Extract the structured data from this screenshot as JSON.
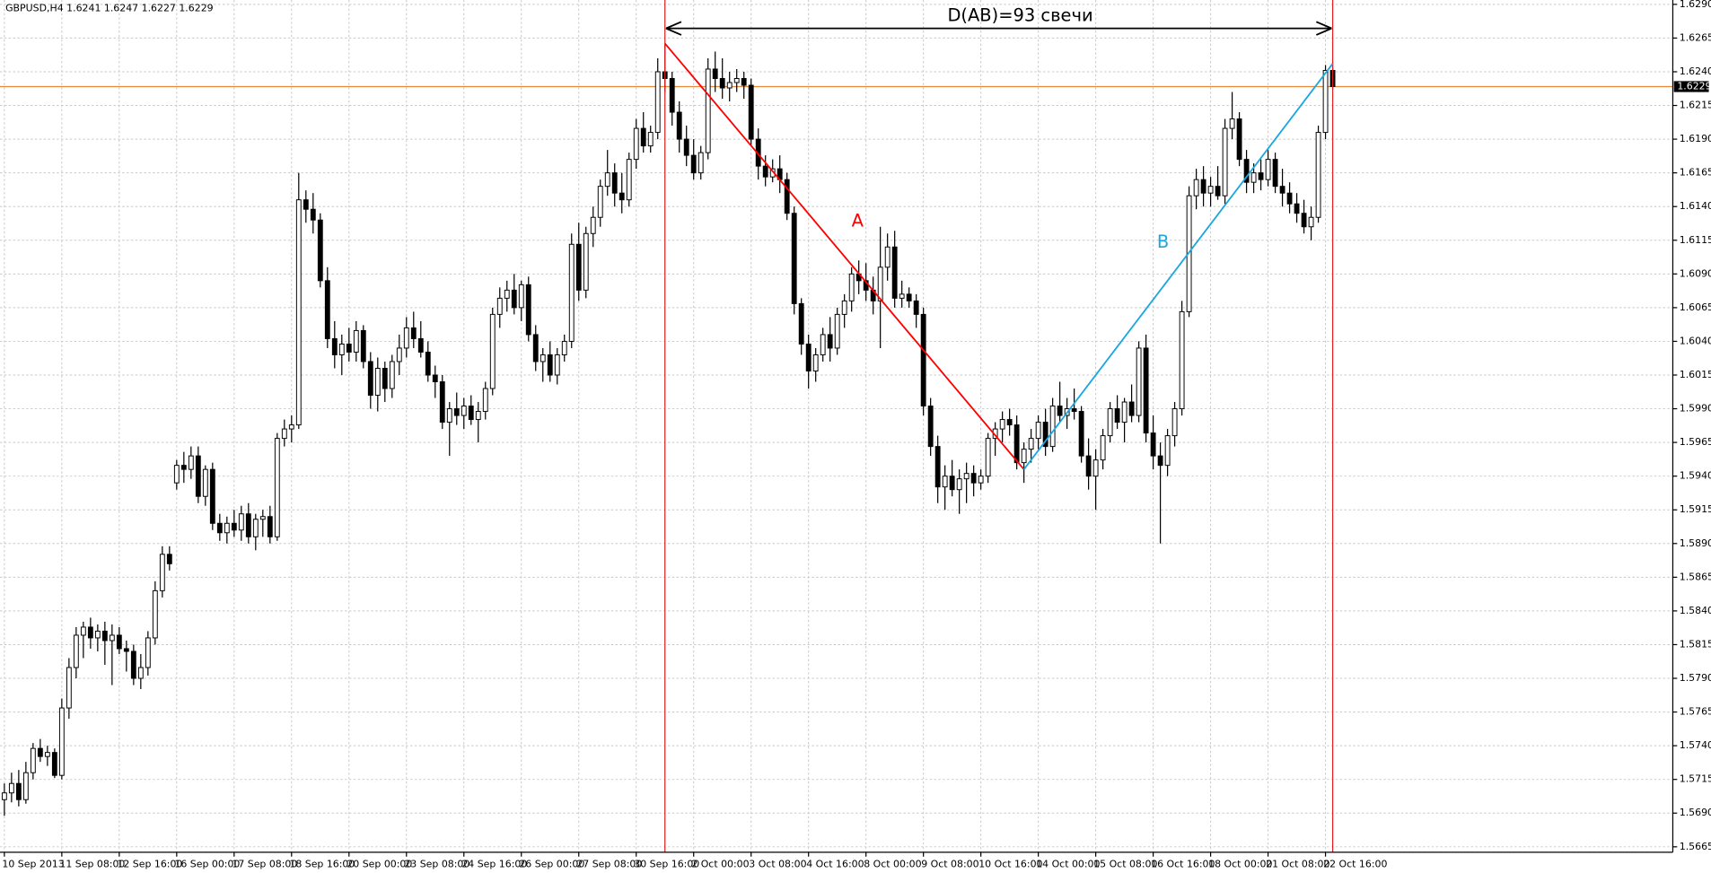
{
  "chart_data": {
    "type": "candlestick",
    "title": "GBPUSD,H4  1.6241 1.6247 1.6227 1.6229",
    "annotation": "D(AB)=93 свечи",
    "ylim": [
      1.5665,
      1.629
    ],
    "yticks": [
      1.5665,
      {
        "value": 1.569,
        "label": "1.5690"
      },
      1.5715,
      {
        "value": 1.574,
        "label": "1.5740"
      },
      1.5765,
      {
        "value": 1.579,
        "label": "1.5790"
      },
      1.5815,
      {
        "value": 1.584,
        "label": "1.5840"
      },
      1.5865,
      {
        "value": 1.589,
        "label": "1.5890"
      },
      1.5915,
      {
        "value": 1.594,
        "label": "1.5940"
      },
      1.5965,
      {
        "value": 1.599,
        "label": "1.5990"
      },
      1.6015,
      {
        "value": 1.604,
        "label": "1.6040"
      },
      1.6065,
      {
        "value": 1.609,
        "label": "1.6090"
      },
      1.6115,
      {
        "value": 1.614,
        "label": "1.6140"
      },
      1.6165,
      {
        "value": 1.619,
        "label": "1.6190"
      },
      1.6215,
      {
        "value": 1.624,
        "label": "1.6240"
      },
      1.6265,
      {
        "value": 1.629,
        "label": "1.6290"
      }
    ],
    "grid": true,
    "up_color": "#ffffff",
    "down_color": "#000000",
    "current_price": 1.6229,
    "current_price_color": "#e8893a",
    "vertical_lines": {
      "color": "#e02020",
      "at": [
        92,
        185
      ]
    },
    "trendlines": [
      {
        "name": "A",
        "color": "#ff0000",
        "points": [
          [
            92,
            1.6261
          ],
          [
            142,
            1.5945
          ]
        ]
      },
      {
        "name": "B",
        "color": "#1aa7e0",
        "points": [
          [
            142,
            1.5945
          ],
          [
            185,
            1.6246
          ]
        ]
      }
    ],
    "categories": [
      "10 Sep 2013",
      null,
      null,
      null,
      null,
      null,
      null,
      null,
      "11 Sep 08:00",
      null,
      null,
      null,
      null,
      null,
      null,
      null,
      "12 Sep 16:00",
      null,
      null,
      null,
      null,
      null,
      null,
      null,
      "16 Sep 00:00",
      null,
      null,
      null,
      null,
      null,
      null,
      null,
      "17 Sep 08:00",
      null,
      null,
      null,
      null,
      null,
      null,
      null,
      "18 Sep 16:00",
      null,
      null,
      null,
      null,
      null,
      null,
      null,
      "20 Sep 00:00",
      null,
      null,
      null,
      null,
      null,
      null,
      null,
      "23 Sep 08:00",
      null,
      null,
      null,
      null,
      null,
      null,
      null,
      "24 Sep 16:00",
      null,
      null,
      null,
      null,
      null,
      null,
      null,
      "26 Sep 00:00",
      null,
      null,
      null,
      null,
      null,
      null,
      null,
      "27 Sep 08:00",
      null,
      null,
      null,
      null,
      null,
      null,
      null,
      "30 Sep 16:00",
      null,
      null,
      null,
      null,
      null,
      null,
      null,
      "2 Oct 00:00",
      null,
      null,
      null,
      null,
      null,
      null,
      null,
      "3 Oct 08:00",
      null,
      null,
      null,
      null,
      null,
      null,
      null,
      "4 Oct 16:00",
      null,
      null,
      null,
      null,
      null,
      null,
      null,
      "8 Oct 00:00",
      null,
      null,
      null,
      null,
      null,
      null,
      null,
      "9 Oct 08:00",
      null,
      null,
      null,
      null,
      null,
      null,
      null,
      "10 Oct 16:00",
      null,
      null,
      null,
      null,
      null,
      null,
      null,
      "14 Oct 00:00",
      null,
      null,
      null,
      null,
      null,
      null,
      null,
      "15 Oct 08:00",
      null,
      null,
      null,
      null,
      null,
      null,
      null,
      "16 Oct 16:00",
      null,
      null,
      null,
      null,
      null,
      null,
      null,
      "18 Oct 00:00",
      null,
      null,
      null,
      null,
      null,
      null,
      null,
      "21 Oct 08:00",
      null,
      null,
      null,
      null,
      null,
      null,
      null,
      "22 Oct 16:00",
      null
    ],
    "ohlc": [
      [
        1.57,
        1.5712,
        1.5688,
        1.5705
      ],
      [
        1.5705,
        1.572,
        1.5698,
        1.5712
      ],
      [
        1.5712,
        1.5722,
        1.5695,
        1.57
      ],
      [
        1.57,
        1.5728,
        1.5697,
        1.572
      ],
      [
        1.572,
        1.5742,
        1.5715,
        1.5738
      ],
      [
        1.5738,
        1.5745,
        1.5728,
        1.5732
      ],
      [
        1.5732,
        1.574,
        1.5725,
        1.5735
      ],
      [
        1.5735,
        1.5738,
        1.5716,
        1.5718
      ],
      [
        1.5718,
        1.5775,
        1.5715,
        1.5768
      ],
      [
        1.5768,
        1.5805,
        1.576,
        1.5798
      ],
      [
        1.5798,
        1.5828,
        1.579,
        1.5822
      ],
      [
        1.5822,
        1.5832,
        1.5805,
        1.5828
      ],
      [
        1.5828,
        1.5835,
        1.5812,
        1.582
      ],
      [
        1.582,
        1.583,
        1.581,
        1.5825
      ],
      [
        1.5825,
        1.5832,
        1.58,
        1.5818
      ],
      [
        1.5818,
        1.583,
        1.5785,
        1.5822
      ],
      [
        1.5822,
        1.5828,
        1.5808,
        1.5812
      ],
      [
        1.5812,
        1.5818,
        1.5795,
        1.581
      ],
      [
        1.581,
        1.5815,
        1.5785,
        1.579
      ],
      [
        1.579,
        1.5808,
        1.5782,
        1.5798
      ],
      [
        1.5798,
        1.5825,
        1.5792,
        1.582
      ],
      [
        1.582,
        1.5862,
        1.5815,
        1.5855
      ],
      [
        1.5855,
        1.5888,
        1.585,
        1.5882
      ],
      [
        1.5882,
        1.5888,
        1.587,
        1.5875
      ],
      [
        1.5935,
        1.5952,
        1.593,
        1.5948
      ],
      [
        1.5948,
        1.5958,
        1.5935,
        1.5945
      ],
      [
        1.5945,
        1.5962,
        1.5938,
        1.5955
      ],
      [
        1.5955,
        1.5962,
        1.592,
        1.5925
      ],
      [
        1.5925,
        1.5948,
        1.5918,
        1.5945
      ],
      [
        1.5945,
        1.595,
        1.59,
        1.5905
      ],
      [
        1.5905,
        1.5912,
        1.5892,
        1.5898
      ],
      [
        1.5898,
        1.591,
        1.589,
        1.5905
      ],
      [
        1.5905,
        1.5915,
        1.5895,
        1.59
      ],
      [
        1.59,
        1.5918,
        1.5892,
        1.5912
      ],
      [
        1.5912,
        1.592,
        1.589,
        1.5895
      ],
      [
        1.5895,
        1.5912,
        1.5885,
        1.5908
      ],
      [
        1.5908,
        1.5915,
        1.5895,
        1.591
      ],
      [
        1.591,
        1.5918,
        1.589,
        1.5895
      ],
      [
        1.5895,
        1.5972,
        1.5892,
        1.5968
      ],
      [
        1.5968,
        1.5982,
        1.5962,
        1.5975
      ],
      [
        1.5975,
        1.5985,
        1.5965,
        1.5978
      ],
      [
        1.5978,
        1.6165,
        1.5975,
        1.6145
      ],
      [
        1.6145,
        1.6152,
        1.6128,
        1.6138
      ],
      [
        1.6138,
        1.615,
        1.612,
        1.613
      ],
      [
        1.613,
        1.6135,
        1.608,
        1.6085
      ],
      [
        1.6085,
        1.6095,
        1.6035,
        1.6042
      ],
      [
        1.6042,
        1.6055,
        1.602,
        1.603
      ],
      [
        1.603,
        1.6045,
        1.6015,
        1.6038
      ],
      [
        1.6038,
        1.605,
        1.6025,
        1.6032
      ],
      [
        1.6032,
        1.6055,
        1.6025,
        1.6048
      ],
      [
        1.6048,
        1.6052,
        1.602,
        1.6025
      ],
      [
        1.6025,
        1.6032,
        1.599,
        1.6
      ],
      [
        1.6,
        1.6028,
        1.5988,
        1.602
      ],
      [
        1.602,
        1.6025,
        1.5995,
        1.6005
      ],
      [
        1.6005,
        1.603,
        1.5998,
        1.6025
      ],
      [
        1.6025,
        1.6045,
        1.6015,
        1.6035
      ],
      [
        1.6035,
        1.6058,
        1.6028,
        1.605
      ],
      [
        1.605,
        1.6062,
        1.6035,
        1.6042
      ],
      [
        1.6042,
        1.6055,
        1.6028,
        1.6032
      ],
      [
        1.6032,
        1.604,
        1.601,
        1.6015
      ],
      [
        1.6015,
        1.6022,
        1.5998,
        1.601
      ],
      [
        1.601,
        1.6015,
        1.5975,
        1.598
      ],
      [
        1.598,
        1.5995,
        1.5955,
        1.599
      ],
      [
        1.599,
        1.6002,
        1.5978,
        1.5985
      ],
      [
        1.5985,
        1.5998,
        1.5975,
        1.5992
      ],
      [
        1.5992,
        1.6,
        1.5978,
        1.5982
      ],
      [
        1.5982,
        1.5995,
        1.5965,
        1.5988
      ],
      [
        1.5988,
        1.601,
        1.5982,
        1.6005
      ],
      [
        1.6005,
        1.6065,
        1.6,
        1.606
      ],
      [
        1.606,
        1.608,
        1.605,
        1.6072
      ],
      [
        1.6072,
        1.6085,
        1.6062,
        1.6078
      ],
      [
        1.6078,
        1.609,
        1.606,
        1.6065
      ],
      [
        1.6065,
        1.6085,
        1.6055,
        1.6082
      ],
      [
        1.6082,
        1.6088,
        1.604,
        1.6045
      ],
      [
        1.6045,
        1.6052,
        1.6018,
        1.6025
      ],
      [
        1.6025,
        1.6035,
        1.601,
        1.603
      ],
      [
        1.603,
        1.604,
        1.601,
        1.6015
      ],
      [
        1.6015,
        1.6035,
        1.6008,
        1.603
      ],
      [
        1.603,
        1.6045,
        1.6025,
        1.604
      ],
      [
        1.604,
        1.612,
        1.6035,
        1.6112
      ],
      [
        1.6112,
        1.6128,
        1.607,
        1.6078
      ],
      [
        1.6078,
        1.6125,
        1.6072,
        1.612
      ],
      [
        1.612,
        1.614,
        1.611,
        1.6132
      ],
      [
        1.6132,
        1.616,
        1.6125,
        1.6155
      ],
      [
        1.6155,
        1.6182,
        1.6148,
        1.6165
      ],
      [
        1.6165,
        1.6172,
        1.614,
        1.615
      ],
      [
        1.615,
        1.6165,
        1.6135,
        1.6145
      ],
      [
        1.6145,
        1.618,
        1.614,
        1.6175
      ],
      [
        1.6175,
        1.6205,
        1.6168,
        1.6198
      ],
      [
        1.6198,
        1.621,
        1.618,
        1.6185
      ],
      [
        1.6185,
        1.62,
        1.618,
        1.6195
      ],
      [
        1.6195,
        1.625,
        1.619,
        1.624
      ],
      [
        1.624,
        1.626,
        1.6225,
        1.6235
      ],
      [
        1.6235,
        1.624,
        1.62,
        1.621
      ],
      [
        1.621,
        1.6218,
        1.618,
        1.619
      ],
      [
        1.619,
        1.62,
        1.617,
        1.6178
      ],
      [
        1.6178,
        1.619,
        1.616,
        1.6165
      ],
      [
        1.6165,
        1.6185,
        1.616,
        1.618
      ],
      [
        1.618,
        1.625,
        1.6175,
        1.6242
      ],
      [
        1.6242,
        1.6255,
        1.6225,
        1.6235
      ],
      [
        1.6235,
        1.625,
        1.622,
        1.6228
      ],
      [
        1.6228,
        1.624,
        1.6218,
        1.6232
      ],
      [
        1.6232,
        1.6242,
        1.6225,
        1.6235
      ],
      [
        1.6235,
        1.624,
        1.622,
        1.623
      ],
      [
        1.623,
        1.6235,
        1.6185,
        1.619
      ],
      [
        1.619,
        1.6198,
        1.616,
        1.617
      ],
      [
        1.617,
        1.6178,
        1.6155,
        1.6162
      ],
      [
        1.6162,
        1.6175,
        1.6158,
        1.6168
      ],
      [
        1.6168,
        1.6178,
        1.615,
        1.616
      ],
      [
        1.616,
        1.6165,
        1.613,
        1.6135
      ],
      [
        1.6135,
        1.614,
        1.606,
        1.6068
      ],
      [
        1.6068,
        1.6072,
        1.603,
        1.6038
      ],
      [
        1.6038,
        1.6045,
        1.6005,
        1.6018
      ],
      [
        1.6018,
        1.6035,
        1.601,
        1.603
      ],
      [
        1.603,
        1.605,
        1.6025,
        1.6045
      ],
      [
        1.6045,
        1.6058,
        1.6025,
        1.6035
      ],
      [
        1.6035,
        1.6065,
        1.603,
        1.606
      ],
      [
        1.606,
        1.6075,
        1.605,
        1.607
      ],
      [
        1.607,
        1.6095,
        1.6062,
        1.609
      ],
      [
        1.609,
        1.61,
        1.6075,
        1.6085
      ],
      [
        1.6085,
        1.6098,
        1.607,
        1.6078
      ],
      [
        1.6078,
        1.6088,
        1.606,
        1.607
      ],
      [
        1.607,
        1.6125,
        1.6035,
        1.6095
      ],
      [
        1.6095,
        1.612,
        1.6085,
        1.611
      ],
      [
        1.611,
        1.6122,
        1.6065,
        1.6072
      ],
      [
        1.6072,
        1.6085,
        1.6065,
        1.6075
      ],
      [
        1.6075,
        1.608,
        1.6065,
        1.607
      ],
      [
        1.607,
        1.6075,
        1.605,
        1.606
      ],
      [
        1.606,
        1.6065,
        1.5985,
        1.5992
      ],
      [
        1.5992,
        1.5998,
        1.5955,
        1.5962
      ],
      [
        1.5962,
        1.597,
        1.592,
        1.5932
      ],
      [
        1.5932,
        1.5948,
        1.5915,
        1.594
      ],
      [
        1.594,
        1.5952,
        1.5925,
        1.593
      ],
      [
        1.593,
        1.5945,
        1.5912,
        1.5938
      ],
      [
        1.5938,
        1.595,
        1.592,
        1.5942
      ],
      [
        1.5942,
        1.5948,
        1.5925,
        1.5935
      ],
      [
        1.5935,
        1.5945,
        1.593,
        1.594
      ],
      [
        1.594,
        1.5972,
        1.5935,
        1.5968
      ],
      [
        1.5968,
        1.598,
        1.5955,
        1.5975
      ],
      [
        1.5975,
        1.5988,
        1.5965,
        1.5982
      ],
      [
        1.5982,
        1.599,
        1.597,
        1.5978
      ],
      [
        1.5978,
        1.5985,
        1.5945,
        1.595
      ],
      [
        1.595,
        1.5965,
        1.5935,
        1.596
      ],
      [
        1.596,
        1.5975,
        1.595,
        1.5968
      ],
      [
        1.5968,
        1.5985,
        1.596,
        1.598
      ],
      [
        1.598,
        1.599,
        1.5955,
        1.5962
      ],
      [
        1.5962,
        1.5998,
        1.5958,
        1.5992
      ],
      [
        1.5992,
        1.601,
        1.598,
        1.5985
      ],
      [
        1.5985,
        1.5998,
        1.5975,
        1.599
      ],
      [
        1.599,
        1.6005,
        1.5982,
        1.5988
      ],
      [
        1.5988,
        1.5992,
        1.595,
        1.5955
      ],
      [
        1.5955,
        1.5968,
        1.593,
        1.594
      ],
      [
        1.594,
        1.596,
        1.5915,
        1.5952
      ],
      [
        1.5952,
        1.5975,
        1.5945,
        1.597
      ],
      [
        1.597,
        1.5995,
        1.5965,
        1.599
      ],
      [
        1.599,
        1.6,
        1.5975,
        1.598
      ],
      [
        1.598,
        1.5998,
        1.5965,
        1.5995
      ],
      [
        1.5995,
        1.6008,
        1.598,
        1.5985
      ],
      [
        1.5985,
        1.604,
        1.598,
        1.6035
      ],
      [
        1.6035,
        1.6045,
        1.5965,
        1.5972
      ],
      [
        1.5972,
        1.5985,
        1.5945,
        1.5955
      ],
      [
        1.5955,
        1.5965,
        1.589,
        1.5948
      ],
      [
        1.5948,
        1.5975,
        1.594,
        1.597
      ],
      [
        1.597,
        1.5995,
        1.5962,
        1.599
      ],
      [
        1.599,
        1.607,
        1.5985,
        1.6062
      ],
      [
        1.6062,
        1.6155,
        1.6058,
        1.6148
      ],
      [
        1.6148,
        1.6168,
        1.6138,
        1.616
      ],
      [
        1.616,
        1.617,
        1.614,
        1.615
      ],
      [
        1.615,
        1.6162,
        1.614,
        1.6155
      ],
      [
        1.6155,
        1.617,
        1.6145,
        1.6148
      ],
      [
        1.6148,
        1.6205,
        1.6142,
        1.6198
      ],
      [
        1.6198,
        1.6225,
        1.619,
        1.6205
      ],
      [
        1.6205,
        1.621,
        1.617,
        1.6175
      ],
      [
        1.6175,
        1.6182,
        1.615,
        1.6158
      ],
      [
        1.6158,
        1.6172,
        1.615,
        1.6165
      ],
      [
        1.6165,
        1.6175,
        1.6152,
        1.616
      ],
      [
        1.616,
        1.6182,
        1.6155,
        1.6175
      ],
      [
        1.6175,
        1.618,
        1.615,
        1.6155
      ],
      [
        1.6155,
        1.6168,
        1.614,
        1.615
      ],
      [
        1.615,
        1.6158,
        1.6135,
        1.6142
      ],
      [
        1.6142,
        1.615,
        1.6128,
        1.6135
      ],
      [
        1.6135,
        1.6145,
        1.612,
        1.6125
      ],
      [
        1.6125,
        1.614,
        1.6115,
        1.6132
      ],
      [
        1.6132,
        1.62,
        1.6128,
        1.6195
      ],
      [
        1.6195,
        1.6245,
        1.619,
        1.6241
      ],
      [
        1.6241,
        1.6247,
        1.6227,
        1.6229
      ]
    ]
  }
}
